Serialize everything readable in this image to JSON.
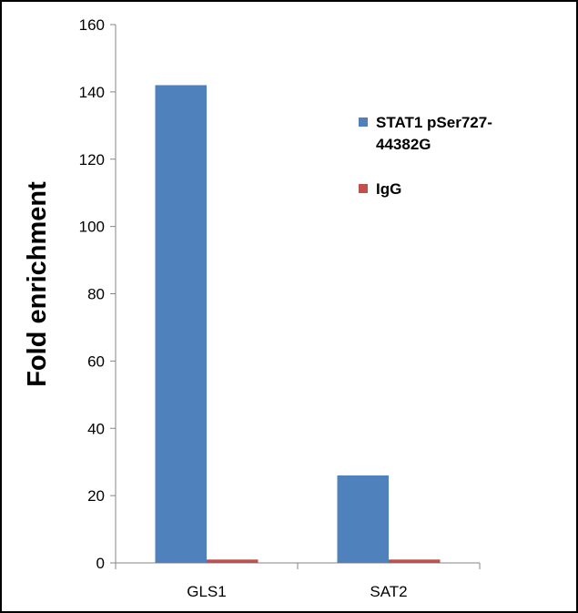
{
  "chart_data": {
    "type": "bar",
    "title": "",
    "xlabel": "",
    "ylabel": "Fold enrichment",
    "ylim": [
      0,
      160
    ],
    "yticks": [
      0,
      20,
      40,
      60,
      80,
      100,
      120,
      140,
      160
    ],
    "grid": false,
    "legend_position": "right",
    "categories": [
      "GLS1",
      "SAT2"
    ],
    "series": [
      {
        "name": "STAT1 pSer727-44382G",
        "name_lines": [
          "STAT1 pSer727-",
          "44382G"
        ],
        "values": [
          142,
          26
        ],
        "color": "#4F81BD"
      },
      {
        "name": "IgG",
        "name_lines": [
          "IgG"
        ],
        "values": [
          1,
          1
        ],
        "color": "#C0504D"
      }
    ]
  }
}
